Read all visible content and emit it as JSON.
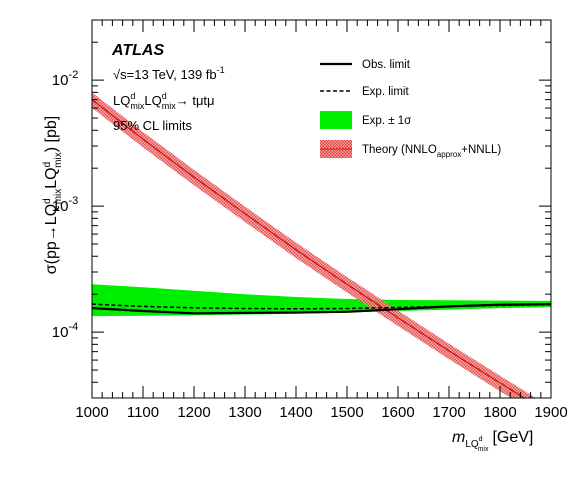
{
  "chart_data": {
    "type": "line",
    "experiment": "ATLAS",
    "annotations": {
      "energy_lumi": "=13 TeV, 139 fb",
      "sqrt_s": "√s",
      "lumi_sup": "-1",
      "process_main": "LQ",
      "process_sub": "mix",
      "process_sup": "d",
      "process_tail": "→ tμtμ",
      "cl": "95% CL limits"
    },
    "xlabel_main": "m",
    "xlabel_sub": "LQ",
    "xlabel_subsup": "d",
    "xlabel_subsub": "mix",
    "xlabel_unit": "[GeV]",
    "ylabel_prefix": "σ(pp→LQ",
    "ylabel_mid": "LQ",
    "ylabel_unit": ") [pb]",
    "ylabel_sup": "d",
    "ylabel_sub": "mix",
    "x_ticks": [
      "1000",
      "1100",
      "1200",
      "1300",
      "1400",
      "1500",
      "1600",
      "1700",
      "1800",
      "1900"
    ],
    "y_tick_main": "10",
    "y_ticks": [
      {
        "value": 0.01,
        "exp": "-2"
      },
      {
        "value": 0.001,
        "exp": "-3"
      },
      {
        "value": 0.0001,
        "exp": "-4"
      }
    ],
    "xlim": [
      1000,
      1900
    ],
    "ylim": [
      3e-05,
      0.03
    ],
    "y_scale": "log",
    "legend": {
      "obs": "Obs. limit",
      "exp": "Exp. limit",
      "band": "Exp. ± 1σ",
      "theory_prefix": "Theory (NNLO",
      "theory_sub": "approx",
      "theory_suffix": "+NNLL)"
    },
    "colors": {
      "band": "#00ee00",
      "theory": "#ee2222",
      "obs": "#000000",
      "exp": "#000000"
    },
    "series": {
      "observed": {
        "x": [
          1000,
          1100,
          1200,
          1300,
          1400,
          1500,
          1600,
          1700,
          1800,
          1900
        ],
        "y": [
          0.000155,
          0.000147,
          0.000141,
          0.000142,
          0.000143,
          0.000145,
          0.000152,
          0.00016,
          0.000165,
          0.000167
        ]
      },
      "expected": {
        "x": [
          1000,
          1100,
          1200,
          1300,
          1400,
          1500,
          1600,
          1700,
          1800,
          1900
        ],
        "y": [
          0.000167,
          0.00016,
          0.000156,
          0.000154,
          0.000153,
          0.000154,
          0.000157,
          0.00016,
          0.000163,
          0.000165
        ]
      },
      "expected_band": {
        "x": [
          1000,
          1100,
          1200,
          1300,
          1400,
          1500,
          1600,
          1700,
          1800,
          1900
        ],
        "low": [
          0.000134,
          0.000135,
          0.000136,
          0.000138,
          0.00014,
          0.000143,
          0.000147,
          0.000151,
          0.000155,
          0.000158
        ],
        "high": [
          0.00024,
          0.000227,
          0.000213,
          0.0002,
          0.00019,
          0.000183,
          0.00018,
          0.000179,
          0.000178,
          0.000177
        ]
      },
      "theory": {
        "x": [
          1000,
          1100,
          1200,
          1300,
          1400,
          1500,
          1600,
          1700,
          1800,
          1900
        ],
        "y": [
          0.007,
          0.0034,
          0.0017,
          0.00087,
          0.00045,
          0.00024,
          0.00013,
          7.1e-05,
          3.95e-05,
          2.22e-05
        ],
        "rel_unc": 0.14
      }
    }
  }
}
